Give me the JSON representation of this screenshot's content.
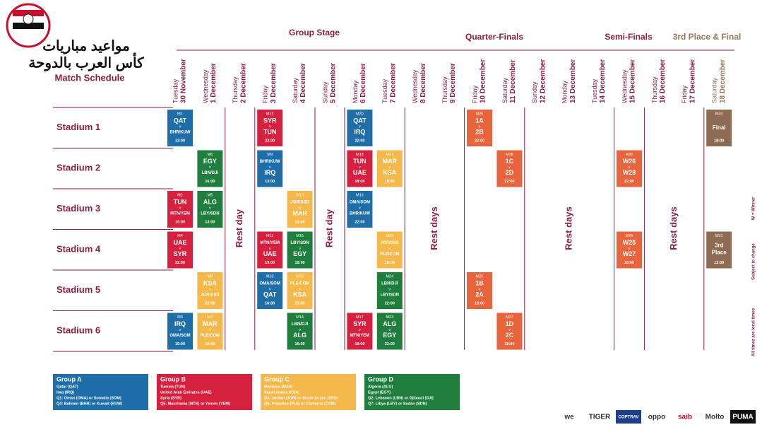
{
  "header": {
    "title_lines": [
      "مواعيد مباريات",
      "كأس العرب بالدوحة"
    ],
    "subtitle": "Match Schedule"
  },
  "stages": [
    "Group Stage",
    "Quarter-Finals",
    "Semi-Finals",
    "3rd Place & Final"
  ],
  "versus": "v",
  "columns": [
    {
      "weekday": "Tuesday",
      "date": "30 November"
    },
    {
      "weekday": "Wednesday",
      "date": "1 December"
    },
    {
      "weekday": "Thursday",
      "date": "2 December",
      "rest": "Rest day"
    },
    {
      "weekday": "Friday",
      "date": "3 December"
    },
    {
      "weekday": "Saturday",
      "date": "4 December"
    },
    {
      "weekday": "Sunday",
      "date": "5 December",
      "rest": "Rest day"
    },
    {
      "weekday": "Monday",
      "date": "6 December"
    },
    {
      "weekday": "Tuesday",
      "date": "7 December"
    },
    {
      "weekday": "Wednesday",
      "date": "8 December",
      "rest": "Rest days"
    },
    {
      "weekday": "Thursday",
      "date": "9 December"
    },
    {
      "weekday": "Friday",
      "date": "10 December"
    },
    {
      "weekday": "Saturday",
      "date": "11 December"
    },
    {
      "weekday": "Sunday",
      "date": "12 December",
      "rest": "Rest days"
    },
    {
      "weekday": "Monday",
      "date": "13 December"
    },
    {
      "weekday": "Tuesday",
      "date": "14 December"
    },
    {
      "weekday": "Wednesday",
      "date": "15 December"
    },
    {
      "weekday": "Thursday",
      "date": "16 December",
      "rest": "Rest days"
    },
    {
      "weekday": "Friday",
      "date": "17 December"
    },
    {
      "weekday": "Saturday",
      "date": "18 December"
    }
  ],
  "stadiums": [
    {
      "name": "Stadium 1",
      "cells": {
        "0": {
          "no": "M1",
          "home": "QAT",
          "away": "BHR/KUW",
          "time": "13:00",
          "color": "#1f6ea8"
        },
        "3": {
          "no": "M12",
          "home": "SYR",
          "away": "TUN",
          "time": "22:00",
          "color": "#d6203f"
        },
        "6": {
          "no": "M20",
          "home": "QAT",
          "away": "IRQ",
          "time": "22:00",
          "color": "#1f6ea8"
        },
        "10": {
          "no": "M26",
          "home": "1A",
          "away": "2B",
          "time": "22:00",
          "color": "#e8643c"
        },
        "18": {
          "no": "M32",
          "label": [
            "Final"
          ],
          "time": "18:00",
          "color": "#8e6b53"
        }
      }
    },
    {
      "name": "Stadium 2",
      "cells": {
        "1": {
          "no": "M6",
          "home": "EGY",
          "away": "LBN/DJI",
          "time": "16:00",
          "color": "#1f7d3e"
        },
        "3": {
          "no": "M9",
          "home": "BHR/KUW",
          "away": "IRQ",
          "time": "13:00",
          "color": "#1f6ea8"
        },
        "6": {
          "no": "M18",
          "home": "TUN",
          "away": "UAE",
          "time": "18:00",
          "color": "#d6203f"
        },
        "7": {
          "no": "M21",
          "home": "MAR",
          "away": "KSA",
          "time": "18:00",
          "color": "#f5b84a"
        },
        "11": {
          "no": "M28",
          "home": "1C",
          "away": "2D",
          "time": "22:00",
          "color": "#e8643c"
        },
        "15": {
          "no": "M30",
          "home": "W26",
          "away": "W28",
          "time": "22:00",
          "color": "#e8643c"
        }
      }
    },
    {
      "name": "Stadium 3",
      "cells": {
        "0": {
          "no": "M2",
          "home": "TUN",
          "away": "MTN/YEM",
          "time": "16:00",
          "color": "#d6203f"
        },
        "1": {
          "no": "M5",
          "home": "ALG",
          "away": "LBY/SDN",
          "time": "13:00",
          "color": "#1f7d3e"
        },
        "4": {
          "no": "M13",
          "home": "JOR/SSD",
          "away": "MAR",
          "time": "13:00",
          "color": "#f5b84a"
        },
        "6": {
          "no": "M19",
          "home": "OMA/SOM",
          "away": "BHR/KUW",
          "time": "22:00",
          "color": "#1f6ea8"
        }
      }
    },
    {
      "name": "Stadium 4",
      "cells": {
        "0": {
          "no": "M4",
          "home": "UAE",
          "away": "SYR",
          "time": "22:00",
          "color": "#d6203f"
        },
        "3": {
          "no": "M11",
          "home": "MTN/YEM",
          "away": "UAE",
          "time": "19:00",
          "color": "#d6203f"
        },
        "4": {
          "no": "M15",
          "home": "LBY/SDN",
          "away": "EGY",
          "time": "19:00",
          "color": "#1f7d3e"
        },
        "7": {
          "no": "M22",
          "home": "JOR/SSD",
          "away": "PLE/COM",
          "time": "18:00",
          "color": "#f5b84a"
        },
        "15": {
          "no": "M29",
          "home": "W25",
          "away": "W27",
          "time": "18:00",
          "color": "#e8643c"
        },
        "18": {
          "no": "M31",
          "label": [
            "3rd",
            "Place"
          ],
          "time": "13:00",
          "color": "#8e6b53"
        }
      }
    },
    {
      "name": "Stadium 5",
      "cells": {
        "1": {
          "no": "M8",
          "home": "KSA",
          "away": "JOR/SSD",
          "time": "22:00",
          "color": "#f5b84a"
        },
        "3": {
          "no": "M10",
          "home": "OMA/SOM",
          "away": "QAT",
          "time": "16:00",
          "color": "#1f6ea8"
        },
        "4": {
          "no": "M16",
          "home": "PLE/COM",
          "away": "KSA",
          "time": "22:00",
          "color": "#f5b84a"
        },
        "7": {
          "no": "M24",
          "home": "LBN/DJI",
          "away": "LBY/SDN",
          "time": "22:00",
          "color": "#1f7d3e"
        },
        "10": {
          "no": "M25",
          "home": "1B",
          "away": "2A",
          "time": "18:00",
          "color": "#e8643c"
        }
      }
    },
    {
      "name": "Stadium 6",
      "cells": {
        "0": {
          "no": "M3",
          "home": "IRQ",
          "away": "OMA/SOM",
          "time": "19:00",
          "color": "#1f6ea8"
        },
        "1": {
          "no": "M7",
          "home": "MAR",
          "away": "PLE/COM",
          "time": "19:00",
          "color": "#f5b84a"
        },
        "4": {
          "no": "M14",
          "home": "LBN/DJI",
          "away": "ALG",
          "time": "16:00",
          "color": "#1f7d3e"
        },
        "6": {
          "no": "M17",
          "home": "SYR",
          "away": "MTN/YEM",
          "time": "18:00",
          "color": "#d6203f"
        },
        "7": {
          "no": "M23",
          "home": "ALG",
          "away": "EGY",
          "time": "22:00",
          "color": "#1f7d3e"
        },
        "11": {
          "no": "M27",
          "home": "1D",
          "away": "2C",
          "time": "18:00",
          "color": "#e8643c"
        }
      }
    }
  ],
  "groups": [
    {
      "name": "Group A",
      "color": "#1f6ea8",
      "teams": [
        "Qatar (QAT)",
        "Iraq (IRQ)",
        "Q1: Oman (OMA) or Somalia (SOM)",
        "Q4: Bahrain (BHR) or Kuwait (KUW)"
      ]
    },
    {
      "name": "Group B",
      "color": "#d6203f",
      "teams": [
        "Tunisia (TUN)",
        "United Arab Emirates (UAE)",
        "Syria (SYR)",
        "Q5: Mauritania (MTN) or Yemen (YEM)"
      ]
    },
    {
      "name": "Group C",
      "color": "#f5b84a",
      "teams": [
        "Morocco (MAR)",
        "Saudi Arabia (KSA)",
        "Q3: Jordan (JOR) or South Sudan (SSD)",
        "Q6: Palestine (PLE) or Comoros (COM)"
      ]
    },
    {
      "name": "Group D",
      "color": "#1f7d3e",
      "teams": [
        "Algeria (ALG)",
        "Egypt (EGY)",
        "Q2: Lebanon (LBN) or Djibouti (DJI)",
        "Q7: Libya (LBY) or Sudan (SDN)"
      ]
    }
  ],
  "notes": [
    "W = Winner",
    "Subject to change",
    "All times are local times"
  ],
  "sponsors": [
    "we",
    "TIGER",
    "COPTRAV",
    "oppo",
    "saib",
    "Molto",
    "PUMA"
  ]
}
